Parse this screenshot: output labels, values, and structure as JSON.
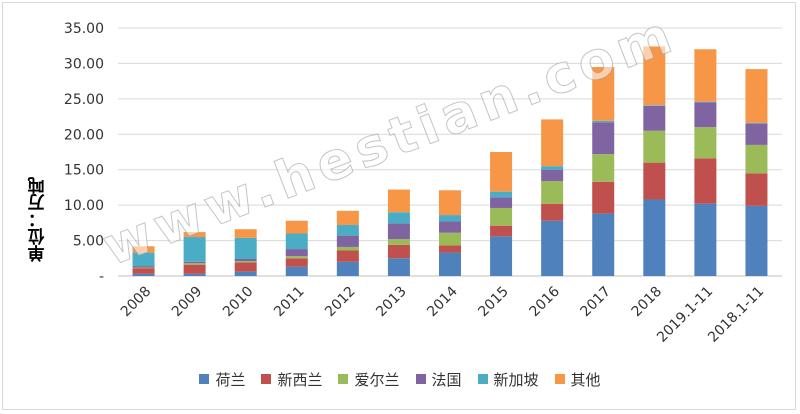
{
  "chart_data": {
    "type": "bar",
    "stacked": true,
    "ylabel": "单位：万吨",
    "ylim": [
      0,
      35
    ],
    "yticks": [
      "-",
      "5.00",
      "10.00",
      "15.00",
      "20.00",
      "25.00",
      "30.00",
      "35.00"
    ],
    "categories": [
      "2008",
      "2009",
      "2010",
      "2011",
      "2012",
      "2013",
      "2014",
      "2015",
      "2016",
      "2017",
      "2018",
      "2019.1-11",
      "2018.1-11"
    ],
    "series": [
      {
        "name": "荷兰",
        "color": "#4f81bd",
        "values": [
          0.3,
          0.3,
          0.6,
          1.3,
          2.0,
          2.5,
          3.3,
          5.6,
          7.8,
          8.8,
          10.8,
          10.2,
          9.9
        ]
      },
      {
        "name": "新西兰",
        "color": "#c0504d",
        "values": [
          0.8,
          1.3,
          1.3,
          1.2,
          1.6,
          1.9,
          1.0,
          1.5,
          2.4,
          4.5,
          5.2,
          6.4,
          4.6
        ]
      },
      {
        "name": "爱尔兰",
        "color": "#9bbb59",
        "values": [
          0.1,
          0.2,
          0.2,
          0.3,
          0.5,
          0.8,
          1.8,
          2.5,
          3.2,
          3.9,
          4.5,
          4.4,
          4.0
        ]
      },
      {
        "name": "法国",
        "color": "#8064a2",
        "values": [
          0.2,
          0.2,
          0.3,
          1.0,
          1.6,
          2.2,
          1.6,
          1.5,
          1.6,
          4.5,
          3.5,
          3.5,
          3.0
        ]
      },
      {
        "name": "新加坡",
        "color": "#4bacc6",
        "values": [
          1.9,
          3.5,
          3.0,
          2.2,
          1.5,
          1.6,
          0.9,
          0.8,
          0.5,
          0.2,
          0.1,
          0.1,
          0.1
        ]
      },
      {
        "name": "其他",
        "color": "#f79646",
        "values": [
          0.9,
          0.7,
          1.2,
          1.8,
          2.0,
          3.2,
          3.5,
          5.6,
          6.6,
          7.6,
          8.3,
          7.4,
          7.6
        ]
      }
    ],
    "legend_position": "bottom",
    "grid": true,
    "watermark": "www.hestian.com"
  }
}
